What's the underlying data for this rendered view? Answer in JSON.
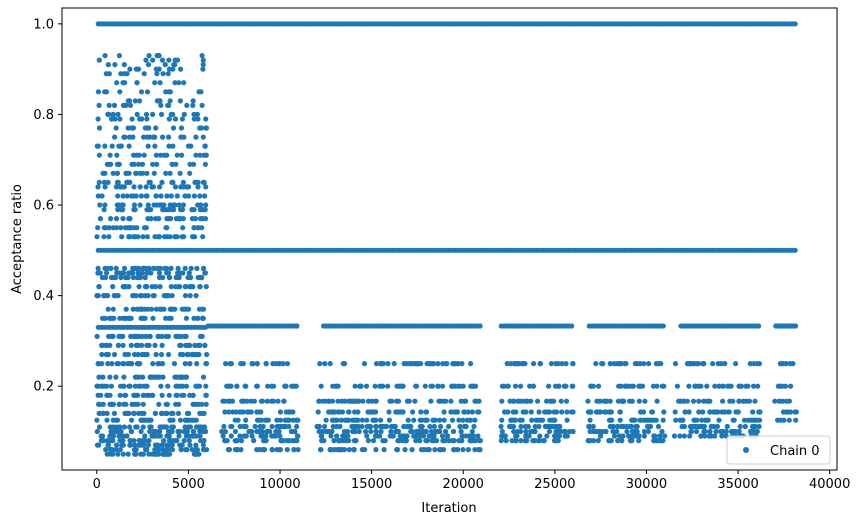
{
  "chart_data": {
    "type": "scatter",
    "xlabel": "Iteration",
    "ylabel": "Acceptance ratio",
    "xlim": [
      -1900,
      40400
    ],
    "ylim": [
      0.015,
      1.035
    ],
    "x_ticks": [
      0,
      5000,
      10000,
      15000,
      20000,
      25000,
      30000,
      35000,
      40000
    ],
    "x_tick_labels": [
      "0",
      "5000",
      "10000",
      "15000",
      "20000",
      "25000",
      "30000",
      "35000",
      "40000"
    ],
    "y_ticks": [
      0.2,
      0.4,
      0.6,
      0.8,
      1.0
    ],
    "y_tick_labels": [
      "0.2",
      "0.4",
      "0.6",
      "0.8",
      "1.0"
    ],
    "grid": false,
    "legend_position": "bottom-right",
    "color": "#1f77b4",
    "series": [
      {
        "name": "Chain 0",
        "point_groups": [
          {
            "x_range": [
              0,
              6000
            ],
            "y_values": [
              0.05,
              0.06,
              0.07,
              0.08,
              0.09,
              0.1,
              0.11,
              0.125,
              0.14,
              0.16,
              0.18,
              0.2,
              0.22,
              0.25,
              0.27,
              0.29,
              0.31,
              0.33,
              0.35,
              0.37,
              0.4,
              0.42,
              0.44,
              0.45,
              0.46,
              0.5,
              0.53,
              0.55,
              0.57,
              0.59,
              0.6,
              0.62,
              0.64,
              0.65,
              0.67,
              0.69,
              0.71,
              0.73,
              0.75,
              0.77,
              0.79,
              0.8,
              0.82,
              0.83,
              0.85,
              0.87,
              0.89,
              0.9,
              0.91,
              0.92,
              0.93,
              1.0
            ]
          },
          {
            "x_range": [
              6000,
              38200
            ],
            "y_values": [
              1.0,
              0.5
            ]
          },
          {
            "x_range": [
              6000,
              11000
            ],
            "y_values": [
              0.333
            ]
          },
          {
            "x_range": [
              12300,
              21000
            ],
            "y_values": [
              0.333
            ]
          },
          {
            "x_range": [
              22000,
              26000
            ],
            "y_values": [
              0.333
            ]
          },
          {
            "x_range": [
              26800,
              31000
            ],
            "y_values": [
              0.333
            ]
          },
          {
            "x_range": [
              31800,
              36200
            ],
            "y_values": [
              0.333
            ]
          },
          {
            "x_range": [
              37000,
              38200
            ],
            "y_values": [
              0.333
            ]
          },
          {
            "x_range": [
              6800,
              11000
            ],
            "y_values": [
              0.25,
              0.2,
              0.167,
              0.143,
              0.125,
              0.111,
              0.1,
              0.09,
              0.08,
              0.06
            ]
          },
          {
            "x_range": [
              12000,
              21000
            ],
            "y_values": [
              0.25,
              0.2,
              0.167,
              0.143,
              0.125,
              0.111,
              0.1,
              0.09,
              0.08,
              0.06
            ]
          },
          {
            "x_range": [
              22000,
              26000
            ],
            "y_values": [
              0.25,
              0.2,
              0.167,
              0.143,
              0.125,
              0.111,
              0.1,
              0.09,
              0.08
            ]
          },
          {
            "x_range": [
              26800,
              31000
            ],
            "y_values": [
              0.25,
              0.2,
              0.167,
              0.143,
              0.125,
              0.111,
              0.1,
              0.09,
              0.08
            ]
          },
          {
            "x_range": [
              31500,
              36200
            ],
            "y_values": [
              0.25,
              0.2,
              0.167,
              0.143,
              0.125,
              0.111,
              0.1,
              0.09
            ]
          },
          {
            "x_range": [
              37000,
              38200
            ],
            "y_values": [
              0.25,
              0.2,
              0.167,
              0.143,
              0.125
            ]
          }
        ]
      }
    ]
  }
}
